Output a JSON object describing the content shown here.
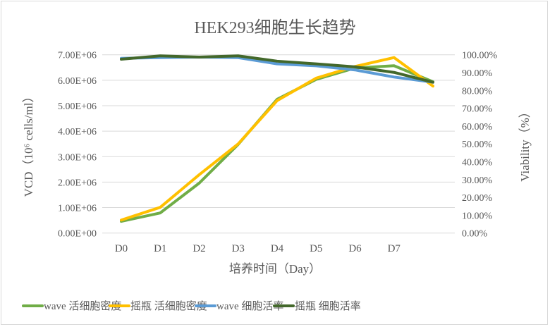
{
  "chart_data": {
    "type": "line",
    "title": "HEK293细胞生长趋势",
    "xlabel": "培养时间（Day）",
    "ylabel": "VCD（10⁶ cells/ml）",
    "y2label": "Viability（%）",
    "categories": [
      "D0",
      "D1",
      "D2",
      "D3",
      "D4",
      "D5",
      "D6",
      "D7",
      ""
    ],
    "ylim": [
      0,
      7000000
    ],
    "y2lim": [
      0,
      1.0
    ],
    "yticks": [
      "0.00E+00",
      "1.00E+06",
      "2.00E+06",
      "3.00E+06",
      "4.00E+06",
      "5.00E+06",
      "6.00E+06",
      "7.00E+06"
    ],
    "y2ticks": [
      "0.00%",
      "10.00%",
      "20.00%",
      "30.00%",
      "40.00%",
      "50.00%",
      "60.00%",
      "70.00%",
      "80.00%",
      "90.00%",
      "100.00%"
    ],
    "grid": true,
    "legend_position": "bottom",
    "series": [
      {
        "name": "wave 活细胞密度",
        "axis": "left",
        "color": "#70AD47",
        "values": [
          460000,
          790000,
          1960000,
          3480000,
          5250000,
          6030000,
          6480000,
          6570000,
          5940000
        ]
      },
      {
        "name": "摇瓶 活细胞密度",
        "axis": "left",
        "color": "#FFC000",
        "values": [
          510000,
          1010000,
          2290000,
          3500000,
          5200000,
          6080000,
          6540000,
          6890000,
          5770000
        ]
      },
      {
        "name": "wave 细胞活率",
        "axis": "right",
        "color": "#5B9BD5",
        "values": [
          0.98,
          0.984,
          0.987,
          0.984,
          0.949,
          0.938,
          0.915,
          0.875,
          0.846
        ]
      },
      {
        "name": "摇瓶 细胞活率",
        "axis": "right",
        "color": "#43682B",
        "values": [
          0.975,
          0.994,
          0.987,
          0.994,
          0.964,
          0.949,
          0.932,
          0.901,
          0.846
        ]
      }
    ]
  }
}
